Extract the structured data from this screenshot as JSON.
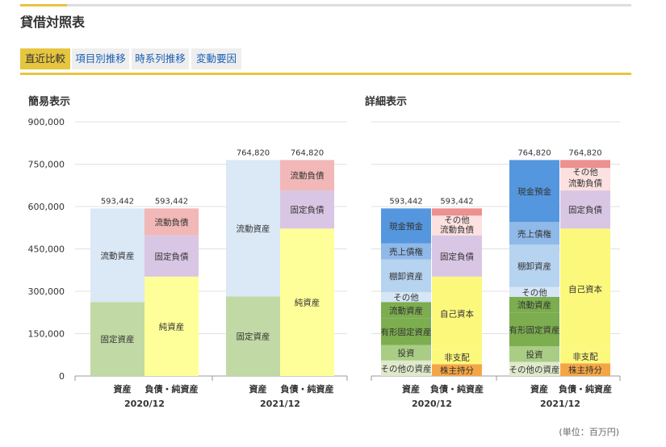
{
  "page": {
    "title": "貸借対照表",
    "unit_note": "(単位：百万円)"
  },
  "tabs": [
    {
      "label": "直近比較",
      "active": true
    },
    {
      "label": "項目別推移",
      "active": false
    },
    {
      "label": "時系列推移",
      "active": false
    },
    {
      "label": "変動要因",
      "active": false
    }
  ],
  "sections": {
    "simple_title": "簡易表示",
    "detail_title": "詳細表示"
  },
  "colors": {
    "accent": "#e6c540",
    "tab_link": "#1a5fb4",
    "current_assets": "#dbe8f6",
    "fixed_assets": "#c1d9a5",
    "current_liabilities": "#f2b8b7",
    "fixed_liabilities": "#d9c6e4",
    "net_assets": "#ffff99",
    "cash": "#5597df",
    "receivables": "#8fb9e8",
    "inventory": "#b6d3f0",
    "current_other": "#d6e6f6",
    "tangible_fixed": "#7cad4f",
    "investments": "#a9cd85",
    "fixed_other": "#dfe9cc",
    "liab_other": "#fde0e0",
    "liab_top": "#ec9090",
    "equity": "#fcf87c",
    "non_controlling": "#f4a646"
  },
  "chart_data": [
    {
      "type": "bar",
      "stacked": true,
      "title": "簡易表示",
      "ylim": [
        0,
        900000
      ],
      "yticks": [
        0,
        150000,
        300000,
        450000,
        600000,
        750000,
        900000
      ],
      "ytick_labels": [
        "0",
        "150,000",
        "300,000",
        "450,000",
        "600,000",
        "750,000",
        "900,000"
      ],
      "grid": true,
      "groups": [
        "2020/12",
        "2021/12"
      ],
      "bar_labels": [
        "資産",
        "負債・純資産"
      ],
      "bars": [
        {
          "group": 0,
          "label": "資産",
          "total": "593,442",
          "segments": [
            {
              "name": "固定資産",
              "value": 262000,
              "color": "#c1d9a5"
            },
            {
              "name": "流動資産",
              "value": 331442,
              "color": "#dbe8f6"
            }
          ]
        },
        {
          "group": 0,
          "label": "負債・純資産",
          "total": "593,442",
          "segments": [
            {
              "name": "純資産",
              "value": 352000,
              "color": "#ffff99"
            },
            {
              "name": "固定負債",
              "value": 146000,
              "color": "#d9c6e4"
            },
            {
              "name": "流動負債",
              "value": 95442,
              "color": "#f2b8b7"
            }
          ]
        },
        {
          "group": 1,
          "label": "資産",
          "total": "764,820",
          "segments": [
            {
              "name": "固定資産",
              "value": 282000,
              "color": "#c1d9a5"
            },
            {
              "name": "流動資産",
              "value": 482820,
              "color": "#dbe8f6"
            }
          ]
        },
        {
          "group": 1,
          "label": "負債・純資産",
          "total": "764,820",
          "segments": [
            {
              "name": "純資産",
              "value": 522000,
              "color": "#ffff99"
            },
            {
              "name": "固定負債",
              "value": 135000,
              "color": "#d9c6e4"
            },
            {
              "name": "流動負債",
              "value": 107820,
              "color": "#f2b8b7"
            }
          ]
        }
      ]
    },
    {
      "type": "bar",
      "stacked": true,
      "title": "詳細表示",
      "ylim": [
        0,
        900000
      ],
      "grid": true,
      "groups": [
        "2020/12",
        "2021/12"
      ],
      "bar_labels": [
        "資産",
        "負債・純資産"
      ],
      "bars": [
        {
          "group": 0,
          "label": "資産",
          "total": "593,442",
          "segments": [
            {
              "name": "その他の資産",
              "value": 55000,
              "color": "#dfe9cc"
            },
            {
              "name": "投資",
              "value": 55000,
              "color": "#a9cd85"
            },
            {
              "name": "有形固定資産",
              "value": 95000,
              "color": "#7cad4f"
            },
            {
              "name": "流動資産",
              "value": 57000,
              "color": "#7cad4f"
            },
            {
              "name": "その他",
              "value": 35000,
              "color": "#d6e6f6"
            },
            {
              "name": "棚卸資産",
              "value": 116000,
              "color": "#b6d3f0"
            },
            {
              "name": "売上債権",
              "value": 57000,
              "color": "#8fb9e8"
            },
            {
              "name": "現金預金",
              "value": 123442,
              "color": "#5597df"
            }
          ]
        },
        {
          "group": 0,
          "label": "負債・純資産",
          "total": "593,442",
          "segments": [
            {
              "name": "株主持分",
              "value": 42000,
              "color": "#f4a646"
            },
            {
              "name": "非支配",
              "value": 50000,
              "color": "#fcf87c"
            },
            {
              "name": "自己資本",
              "value": 260000,
              "color": "#fcf87c"
            },
            {
              "name": "固定負債",
              "value": 146000,
              "color": "#d9c6e4"
            },
            {
              "name": "流動負債",
              "value": 43000,
              "color": "#fde0e0"
            },
            {
              "name": "その他",
              "value": 27000,
              "color": "#fde0e0"
            },
            {
              "name": "",
              "value": 25442,
              "color": "#ec9090"
            }
          ]
        },
        {
          "group": 1,
          "label": "資産",
          "total": "764,820",
          "segments": [
            {
              "name": "その他の資産",
              "value": 50000,
              "color": "#dfe9cc"
            },
            {
              "name": "投資",
              "value": 55000,
              "color": "#a9cd85"
            },
            {
              "name": "有形固定資産",
              "value": 120000,
              "color": "#7cad4f"
            },
            {
              "name": "流動資産",
              "value": 55000,
              "color": "#7cad4f"
            },
            {
              "name": "その他",
              "value": 35000,
              "color": "#d6e6f6"
            },
            {
              "name": "棚卸資産",
              "value": 150000,
              "color": "#b6d3f0"
            },
            {
              "name": "売上債権",
              "value": 80000,
              "color": "#8fb9e8"
            },
            {
              "name": "現金預金",
              "value": 219820,
              "color": "#5597df"
            }
          ]
        },
        {
          "group": 1,
          "label": "負債・純資産",
          "total": "764,820",
          "segments": [
            {
              "name": "株主持分",
              "value": 45000,
              "color": "#f4a646"
            },
            {
              "name": "非支配",
              "value": 50000,
              "color": "#fcf87c"
            },
            {
              "name": "自己資本",
              "value": 427000,
              "color": "#fcf87c"
            },
            {
              "name": "固定負債",
              "value": 135000,
              "color": "#d9c6e4"
            },
            {
              "name": "流動負債",
              "value": 55000,
              "color": "#fde0e0"
            },
            {
              "name": "その他",
              "value": 25000,
              "color": "#fde0e0"
            },
            {
              "name": "",
              "value": 27820,
              "color": "#ec9090"
            }
          ]
        }
      ]
    }
  ]
}
